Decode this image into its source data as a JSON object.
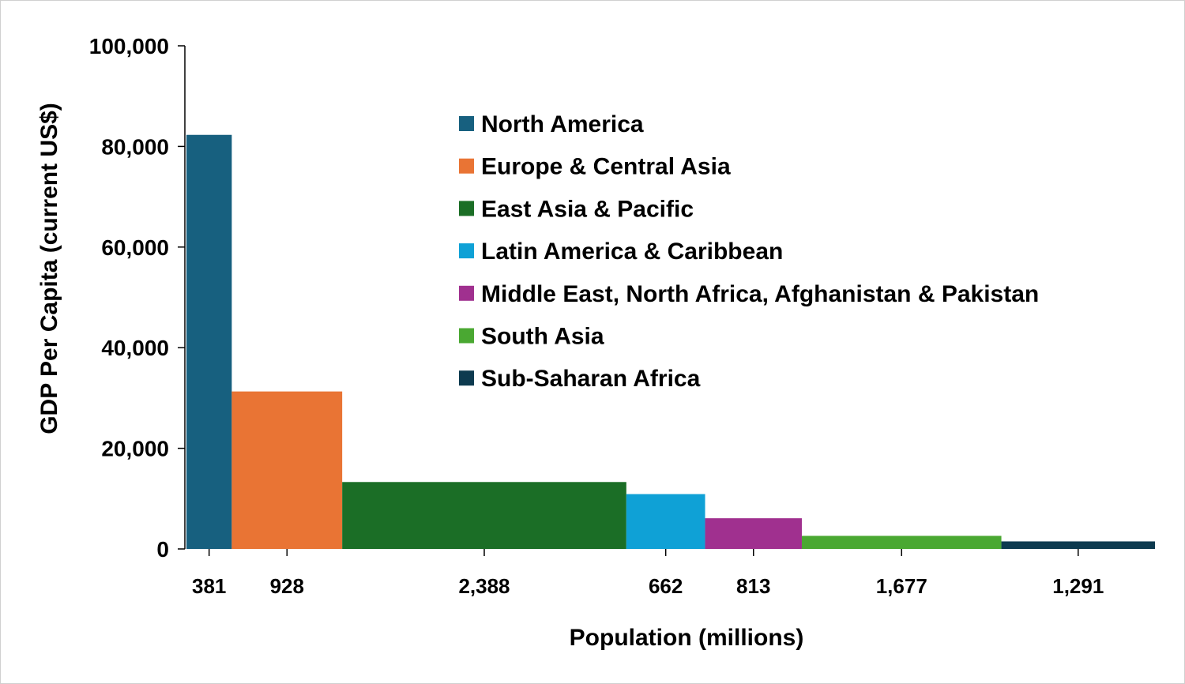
{
  "chart_data": {
    "type": "bar",
    "subtype": "variable-width",
    "title": "",
    "xlabel": "Population (millions)",
    "ylabel": "GDP Per Capita (current US$)",
    "ylim": [
      0,
      100000
    ],
    "yticks": [
      0,
      20000,
      40000,
      60000,
      80000,
      100000
    ],
    "ytick_labels": [
      "0",
      "20,000",
      "40,000",
      "60,000",
      "80,000",
      "100,000"
    ],
    "grid": false,
    "legend_position": "top-right",
    "series": [
      {
        "name": "North America",
        "population": 381,
        "population_label": "381",
        "gdp_per_capita": 82300,
        "color": "#17607f"
      },
      {
        "name": "Europe & Central Asia",
        "population": 928,
        "population_label": "928",
        "gdp_per_capita": 31300,
        "color": "#e97434"
      },
      {
        "name": "East Asia & Pacific",
        "population": 2388,
        "population_label": "2,388",
        "gdp_per_capita": 13300,
        "color": "#1b6e26"
      },
      {
        "name": "Latin America & Caribbean",
        "population": 662,
        "population_label": "662",
        "gdp_per_capita": 10900,
        "color": "#0fa1d6"
      },
      {
        "name": "Middle East, North Africa, Afghanistan & Pakistan",
        "population": 813,
        "population_label": "813",
        "gdp_per_capita": 6100,
        "color": "#a0308f"
      },
      {
        "name": "South Asia",
        "population": 1677,
        "population_label": "1,677",
        "gdp_per_capita": 2600,
        "color": "#4aa832"
      },
      {
        "name": "Sub-Saharan Africa",
        "population": 1291,
        "population_label": "1,291",
        "gdp_per_capita": 1500,
        "color": "#0d3a4f"
      }
    ]
  }
}
